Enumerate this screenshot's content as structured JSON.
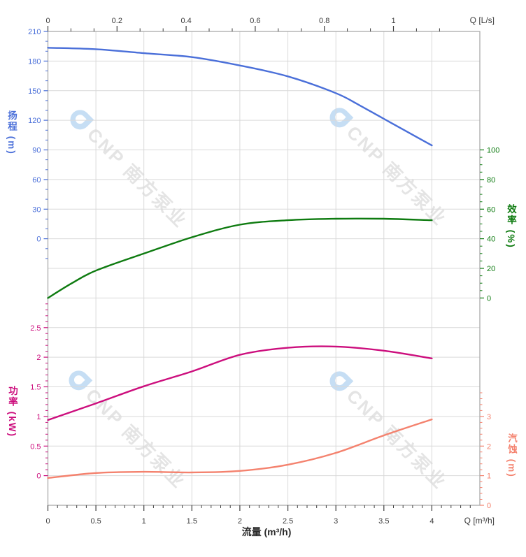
{
  "watermark": {
    "text": "CNP 南方泵业",
    "logo_color": "#b9d6f2",
    "text_color": "#dedede"
  },
  "axes": {
    "flow_bottom": {
      "title": "流量 (m³/h)",
      "corner_label": "Q [m³/h]",
      "unit": "m³/h",
      "labels": [
        "0",
        "0.5",
        "1",
        "1.5",
        "2",
        "2.5",
        "3",
        "3.5",
        "4"
      ],
      "major_step": 0.5,
      "minor_step": 0.1,
      "range": [
        0,
        4.5
      ],
      "color": "#3d3d3d"
    },
    "flow_top": {
      "corner_label": "Q [L/s]",
      "unit": "L/s",
      "labels": [
        "0",
        "0.2",
        "0.4",
        "0.6",
        "0.8",
        "1"
      ],
      "major_step": 0.2,
      "minors_per_major": 2,
      "minor_max_value": 1.14,
      "ls_to_m3h": 3.6,
      "color": "#3d3d3d"
    },
    "head": {
      "title": "扬程 (m)",
      "side": "left",
      "color": "#4a6fd9",
      "labels": [
        "210",
        "180",
        "150",
        "120",
        "90",
        "60",
        "30",
        "0"
      ],
      "top_row": 0,
      "top_value": 210,
      "value_per_row": 30,
      "n_rows": 7,
      "minors_per_row": 2,
      "extend_before": 0,
      "extend_after": 1
    },
    "efficiency": {
      "title": "效率 (%)",
      "side": "right",
      "color": "#0e7b10",
      "labels": [
        "100",
        "80",
        "60",
        "40",
        "20",
        "0"
      ],
      "top_row": 4,
      "top_value": 100,
      "value_per_row": 20,
      "n_rows": 5,
      "minors_per_row": 3,
      "extend_before": 0,
      "extend_after": 0
    },
    "power": {
      "title": "功率 (kW)",
      "side": "left",
      "color": "#cc0e7d",
      "labels": [
        "2.5",
        "2",
        "1.5",
        "1",
        "0.5",
        "0"
      ],
      "top_row": 10,
      "top_value": 2.5,
      "value_per_row": 0.5,
      "n_rows": 5,
      "minors_per_row": 4,
      "extend_before": 1,
      "extend_after": 0
    },
    "npsh": {
      "title": "汽蚀 (m)",
      "side": "right",
      "color": "#f4826e",
      "labels": [
        "3",
        "2",
        "1",
        "0"
      ],
      "top_row": 13,
      "top_value": 3,
      "value_per_row": 1,
      "n_rows": 3,
      "minors_per_row": 4,
      "extend_before": 1,
      "extend_after": 0
    }
  },
  "chart_data": {
    "type": "line",
    "title": "",
    "xlabel": "流量 (m³/h)",
    "x_unit": "m³/h",
    "x_range_plot": [
      0,
      4.5
    ],
    "grid": true,
    "legend": "none",
    "series": [
      {
        "name": "扬程",
        "unit": "m",
        "axis": "head",
        "color": "#4a6fd9",
        "axis_range": [
          210,
          -270
        ],
        "q": [
          0,
          0.5,
          1,
          1.5,
          2,
          2.5,
          3,
          3.25,
          3.5,
          3.75,
          4
        ],
        "values": [
          193.5,
          192,
          188,
          184,
          175.5,
          164.5,
          147.5,
          135,
          121.5,
          108,
          94.5
        ]
      },
      {
        "name": "效率",
        "unit": "%",
        "axis": "efficiency",
        "color": "#0e7b10",
        "axis_range": [
          0,
          100
        ],
        "q": [
          0,
          0.25,
          0.5,
          1,
          1.5,
          2,
          2.5,
          3,
          3.5,
          4
        ],
        "values": [
          0,
          10,
          18.5,
          30,
          41,
          49.5,
          52.5,
          53.5,
          53.5,
          52.5
        ]
      },
      {
        "name": "功率",
        "unit": "kW",
        "axis": "power",
        "color": "#cc0e7d",
        "axis_range": [
          0,
          2.5
        ],
        "q": [
          0,
          0.5,
          1,
          1.5,
          2,
          2.5,
          3,
          3.5,
          4
        ],
        "values": [
          0.94,
          1.22,
          1.51,
          1.76,
          2.04,
          2.16,
          2.18,
          2.11,
          1.98
        ]
      },
      {
        "name": "汽蚀",
        "unit": "m",
        "axis": "npsh",
        "color": "#f4826e",
        "axis_range": [
          0,
          3
        ],
        "q": [
          0,
          0.5,
          1,
          1.5,
          2,
          2.5,
          3,
          3.5,
          4
        ],
        "values": [
          0.92,
          1.09,
          1.13,
          1.11,
          1.16,
          1.37,
          1.77,
          2.36,
          2.9
        ]
      }
    ]
  }
}
